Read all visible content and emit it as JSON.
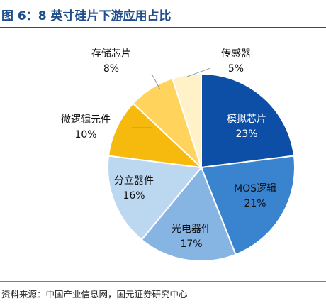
{
  "header": {
    "title": "图 6：8 英寸硅片下游应用占比"
  },
  "footer": {
    "source": "资料来源：中国产业信息网，国元证券研究中心"
  },
  "chart_data": {
    "type": "pie",
    "start": "top",
    "direction": "clockwise",
    "slices": [
      {
        "label": "模拟芯片",
        "value": 23,
        "value_label": "23%",
        "color": "#0d4fa6",
        "text_color": "#ffffff"
      },
      {
        "label": "MOS逻辑",
        "value": 21,
        "value_label": "21%",
        "color": "#3a83cf",
        "text_color": "#111111"
      },
      {
        "label": "光电器件",
        "value": 17,
        "value_label": "17%",
        "color": "#86b4e3",
        "text_color": "#111111"
      },
      {
        "label": "分立器件",
        "value": 16,
        "value_label": "16%",
        "color": "#bcd7f0",
        "text_color": "#111111"
      },
      {
        "label": "微逻辑元件",
        "value": 10,
        "value_label": "10%",
        "color": "#f6b90e",
        "text_color": "#111111"
      },
      {
        "label": "存储芯片",
        "value": 8,
        "value_label": "8%",
        "color": "#ffd35c",
        "text_color": "#111111"
      },
      {
        "label": "传感器",
        "value": 5,
        "value_label": "5%",
        "color": "#fff1c8",
        "text_color": "#111111"
      }
    ]
  }
}
